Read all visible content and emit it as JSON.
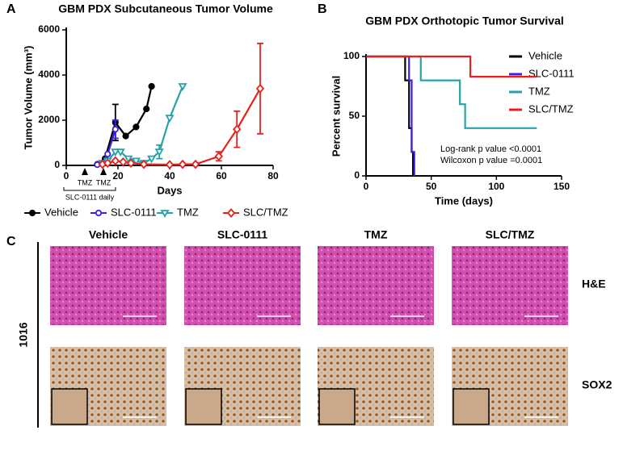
{
  "chart_data": [
    {
      "type": "line",
      "panel": "A",
      "title": "GBM PDX Subcutaneous Tumor Volume",
      "x_label": "Days",
      "y_label": "Tumor Volume (mm³)",
      "xlim": [
        0,
        80
      ],
      "xticks": [
        0,
        20,
        40,
        60,
        80
      ],
      "ylim": [
        0,
        6000
      ],
      "yticks": [
        0,
        2000,
        4000,
        6000
      ],
      "legend": "bottom",
      "annotations": [
        "TMZ",
        "TMZ",
        "SLC-0111 daily"
      ],
      "series": [
        {
          "name": "Vehicle",
          "color": "#000000",
          "marker": "circle-filled",
          "x": [
            12,
            15,
            19,
            23,
            27,
            31,
            33
          ],
          "values": [
            50,
            300,
            1900,
            1300,
            1700,
            2500,
            3500
          ],
          "errors": [
            null,
            null,
            800,
            null,
            null,
            null,
            null
          ]
        },
        {
          "name": "SLC-0111",
          "color": "#3a1fe0",
          "marker": "circle-open",
          "x": [
            12,
            14,
            16,
            19
          ],
          "values": [
            30,
            100,
            500,
            1600
          ],
          "errors": [
            null,
            null,
            null,
            400
          ]
        },
        {
          "name": "TMZ",
          "color": "#27a3a8",
          "marker": "triangle-down",
          "x": [
            14,
            16,
            19,
            21,
            24,
            27,
            30,
            33,
            36,
            40,
            45
          ],
          "values": [
            100,
            200,
            600,
            600,
            300,
            200,
            100,
            300,
            600,
            2100,
            3500
          ],
          "errors": [
            null,
            null,
            null,
            null,
            null,
            null,
            null,
            null,
            300,
            null,
            null
          ]
        },
        {
          "name": "SLC/TMZ",
          "color": "#e8201a",
          "marker": "diamond",
          "x": [
            14,
            16,
            19,
            22,
            25,
            30,
            40,
            45,
            50,
            59,
            66,
            75
          ],
          "values": [
            50,
            100,
            200,
            150,
            100,
            50,
            30,
            50,
            50,
            400,
            1600,
            3400
          ],
          "errors": [
            null,
            null,
            null,
            null,
            null,
            null,
            null,
            null,
            null,
            200,
            800,
            2000
          ]
        }
      ]
    },
    {
      "type": "step",
      "panel": "B",
      "title": "GBM PDX Orthotopic Tumor Survival",
      "x_label": "Time (days)",
      "y_label": "Percent survival",
      "xlim": [
        0,
        150
      ],
      "xticks": [
        0,
        50,
        100,
        150
      ],
      "ylim": [
        0,
        100
      ],
      "yticks": [
        0,
        50,
        100
      ],
      "legend": "right",
      "annotations": [
        "Log-rank p value <0.0001",
        "Wilcoxon p value =0.0001"
      ],
      "series": [
        {
          "name": "Vehicle",
          "color": "#000000",
          "x": [
            0,
            30,
            33,
            35,
            36
          ],
          "values": [
            100,
            80,
            40,
            20,
            0
          ]
        },
        {
          "name": "SLC-0111",
          "color": "#3a1fe0",
          "x": [
            0,
            33,
            35,
            37
          ],
          "values": [
            100,
            80,
            20,
            0
          ]
        },
        {
          "name": "TMZ",
          "color": "#27a3a8",
          "x": [
            0,
            42,
            72,
            76,
            131
          ],
          "values": [
            100,
            80,
            60,
            40,
            40
          ]
        },
        {
          "name": "SLC/TMZ",
          "color": "#e8201a",
          "x": [
            0,
            80,
            131
          ],
          "values": [
            100,
            83,
            83
          ]
        }
      ]
    }
  ],
  "panel_c": {
    "label": "C",
    "sample": "1016",
    "columns": [
      "Vehicle",
      "SLC-0111",
      "TMZ",
      "SLC/TMZ"
    ],
    "rows": [
      "H&E",
      "SOX2"
    ]
  }
}
